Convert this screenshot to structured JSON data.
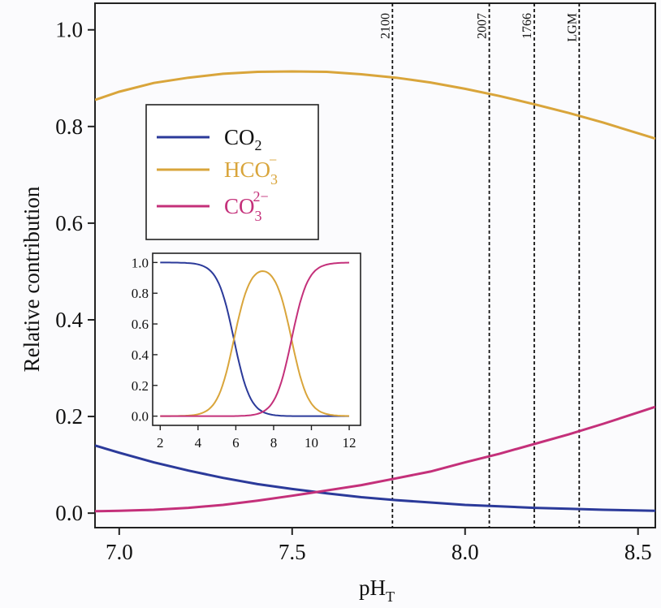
{
  "chart_data": [
    {
      "type": "line",
      "xlabel": "pH",
      "xlabel_sub": "T",
      "ylabel": "Relative contribution",
      "xlim": [
        6.93,
        8.55
      ],
      "ylim": [
        -0.03,
        1.055
      ],
      "xticks": [
        7.0,
        7.5,
        8.0,
        8.5
      ],
      "xtick_labels": [
        "7.0",
        "7.5",
        "8.0",
        "8.5"
      ],
      "yticks": [
        0.0,
        0.2,
        0.4,
        0.6,
        0.8,
        1.0
      ],
      "ytick_labels": [
        "0.0",
        "0.2",
        "0.4",
        "0.6",
        "0.8",
        "1.0"
      ],
      "grid": false,
      "legend_position": "top-left",
      "series": [
        {
          "name": "CO",
          "name_sub": "2",
          "color": "#2b3a9a",
          "x": [
            6.93,
            7.0,
            7.1,
            7.2,
            7.3,
            7.4,
            7.5,
            7.6,
            7.7,
            7.8,
            7.9,
            8.0,
            8.1,
            8.2,
            8.3,
            8.4,
            8.55
          ],
          "y": [
            0.14,
            0.125,
            0.105,
            0.088,
            0.073,
            0.06,
            0.05,
            0.041,
            0.033,
            0.027,
            0.022,
            0.017,
            0.014,
            0.011,
            0.009,
            0.007,
            0.005
          ]
        },
        {
          "name": "HCO",
          "name_sub": "3",
          "name_sup": "−",
          "color": "#d9a53b",
          "x": [
            6.93,
            7.0,
            7.1,
            7.2,
            7.3,
            7.4,
            7.5,
            7.6,
            7.7,
            7.8,
            7.9,
            8.0,
            8.1,
            8.2,
            8.3,
            8.4,
            8.55
          ],
          "y": [
            0.855,
            0.872,
            0.89,
            0.901,
            0.909,
            0.913,
            0.914,
            0.913,
            0.908,
            0.901,
            0.891,
            0.878,
            0.863,
            0.846,
            0.828,
            0.808,
            0.775
          ]
        },
        {
          "name": "CO",
          "name_sub": "3",
          "name_sup": "2−",
          "color": "#c4307a",
          "x": [
            6.93,
            7.0,
            7.1,
            7.2,
            7.3,
            7.4,
            7.5,
            7.6,
            7.7,
            7.8,
            7.9,
            8.0,
            8.1,
            8.2,
            8.3,
            8.4,
            8.55
          ],
          "y": [
            0.004,
            0.005,
            0.007,
            0.011,
            0.017,
            0.026,
            0.036,
            0.047,
            0.058,
            0.072,
            0.086,
            0.105,
            0.123,
            0.143,
            0.163,
            0.185,
            0.22
          ]
        }
      ],
      "vlines": [
        {
          "x": 7.79,
          "label": "2100"
        },
        {
          "x": 8.07,
          "label": "2007"
        },
        {
          "x": 8.2,
          "label": "1766"
        },
        {
          "x": 8.33,
          "label": "LGM"
        }
      ]
    },
    {
      "type": "line",
      "inset": true,
      "xlim": [
        1.6,
        12.6
      ],
      "ylim": [
        -0.06,
        1.06
      ],
      "xticks": [
        2,
        4,
        6,
        8,
        10,
        12
      ],
      "xtick_labels": [
        "2",
        "4",
        "6",
        "8",
        "10",
        "12"
      ],
      "yticks": [
        0.0,
        0.2,
        0.4,
        0.6,
        0.8,
        1.0
      ],
      "ytick_labels": [
        "0.0",
        "0.2",
        "0.4",
        "0.6",
        "0.8",
        "1.0"
      ],
      "pK1": 5.9,
      "pK2": 8.95
    }
  ]
}
